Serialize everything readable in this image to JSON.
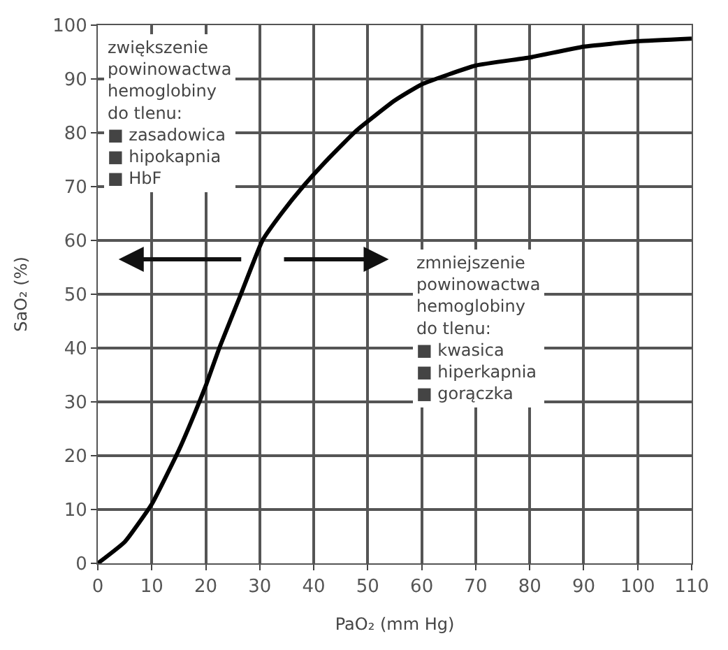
{
  "chart_data": {
    "type": "line",
    "xlabel": "PaO₂ (mm Hg)",
    "ylabel": "SaO₂ (%)",
    "x": [
      0,
      5,
      10,
      15,
      18,
      20,
      22.5,
      26.5,
      30.5,
      34,
      38,
      43,
      48,
      55,
      60,
      70,
      80,
      90,
      100,
      110
    ],
    "series": [
      {
        "color": "#000000",
        "values": [
          0,
          4,
          11,
          21,
          28,
          33,
          40,
          50,
          60,
          65,
          70,
          75.5,
          80.5,
          86,
          89,
          92.5,
          94,
          96,
          97,
          97.5
        ]
      }
    ],
    "xlim": [
      0,
      110
    ],
    "ylim": [
      0,
      100
    ],
    "xticks": [
      0,
      10,
      20,
      30,
      40,
      50,
      60,
      70,
      80,
      90,
      100,
      110
    ],
    "yticks": [
      0,
      10,
      20,
      30,
      40,
      50,
      60,
      70,
      80,
      90,
      100
    ],
    "grid": true,
    "legend": false,
    "marker": "none",
    "line_style": "solid",
    "annotations": [
      "zwiększenie\npowinowactwa\nhemoglobiny\ndo tlenu:\n■ zasadowica\n■ hipokapnia\n■ HbF",
      "zmniejszenie\npowinowactwa\nhemoglobiny\ndo tlenu:\n■ kwasica\n■ hiperkapnia\n■ gorączka"
    ]
  }
}
